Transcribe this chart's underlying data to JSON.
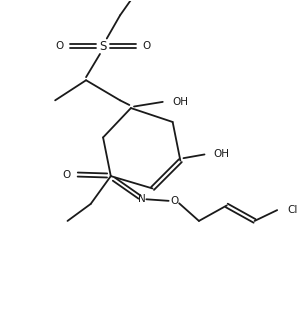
{
  "bg_color": "#ffffff",
  "line_color": "#1a1a1a",
  "line_width": 1.3,
  "font_size": 7.5,
  "figsize": [
    3.02,
    3.12
  ],
  "dpi": 100,
  "xlim": [
    0,
    9.5
  ],
  "ylim": [
    0,
    10.0
  ]
}
